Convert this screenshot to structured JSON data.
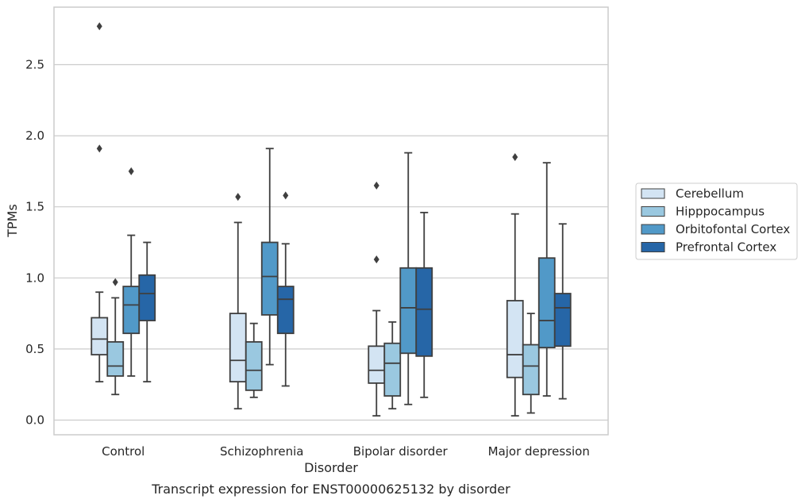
{
  "chart_data": {
    "type": "box",
    "xlabel": "Disorder",
    "ylabel": "TPMs",
    "caption": "Transcript expression for ENST00000625132 by disorder",
    "categories": [
      "Control",
      "Schizophrenia",
      "Bipolar disorder",
      "Major depression"
    ],
    "ylim": [
      -0.1,
      2.9
    ],
    "yticks": [
      0.0,
      0.5,
      1.0,
      1.5,
      2.0,
      2.5
    ],
    "ytick_labels": [
      "0.0",
      "0.5",
      "1.0",
      "1.5",
      "2.0",
      "2.5"
    ],
    "grid": "horizontal",
    "legend_position": "right",
    "series": [
      {
        "name": "Cerebellum",
        "color": "#d3e4f3",
        "boxes": [
          {
            "whislo": 0.27,
            "q1": 0.46,
            "med": 0.57,
            "q3": 0.72,
            "whishi": 0.9,
            "fliers": [
              1.91,
              2.77
            ]
          },
          {
            "whislo": 0.08,
            "q1": 0.27,
            "med": 0.42,
            "q3": 0.75,
            "whishi": 1.39,
            "fliers": [
              1.57
            ]
          },
          {
            "whislo": 0.03,
            "q1": 0.26,
            "med": 0.35,
            "q3": 0.52,
            "whishi": 0.77,
            "fliers": [
              1.13,
              1.65
            ]
          },
          {
            "whislo": 0.03,
            "q1": 0.3,
            "med": 0.46,
            "q3": 0.84,
            "whishi": 1.45,
            "fliers": [
              1.85
            ]
          }
        ]
      },
      {
        "name": "Hipppocampus",
        "color": "#9ac8e0",
        "boxes": [
          {
            "whislo": 0.18,
            "q1": 0.31,
            "med": 0.38,
            "q3": 0.55,
            "whishi": 0.86,
            "fliers": [
              0.97
            ]
          },
          {
            "whislo": 0.16,
            "q1": 0.21,
            "med": 0.35,
            "q3": 0.55,
            "whishi": 0.68,
            "fliers": []
          },
          {
            "whislo": 0.08,
            "q1": 0.17,
            "med": 0.4,
            "q3": 0.54,
            "whishi": 0.69,
            "fliers": []
          },
          {
            "whislo": 0.05,
            "q1": 0.18,
            "med": 0.38,
            "q3": 0.53,
            "whishi": 0.75,
            "fliers": []
          }
        ]
      },
      {
        "name": "Orbitofontal Cortex",
        "color": "#5199c8",
        "boxes": [
          {
            "whislo": 0.31,
            "q1": 0.61,
            "med": 0.81,
            "q3": 0.94,
            "whishi": 1.3,
            "fliers": [
              1.75
            ]
          },
          {
            "whislo": 0.39,
            "q1": 0.74,
            "med": 1.01,
            "q3": 1.25,
            "whishi": 1.91,
            "fliers": []
          },
          {
            "whislo": 0.11,
            "q1": 0.47,
            "med": 0.79,
            "q3": 1.07,
            "whishi": 1.88,
            "fliers": []
          },
          {
            "whislo": 0.17,
            "q1": 0.51,
            "med": 0.7,
            "q3": 1.14,
            "whishi": 1.81,
            "fliers": []
          }
        ]
      },
      {
        "name": "Prefrontal Cortex",
        "color": "#2666a7",
        "boxes": [
          {
            "whislo": 0.27,
            "q1": 0.7,
            "med": 0.89,
            "q3": 1.02,
            "whishi": 1.25,
            "fliers": []
          },
          {
            "whislo": 0.24,
            "q1": 0.61,
            "med": 0.85,
            "q3": 0.94,
            "whishi": 1.24,
            "fliers": [
              1.58
            ]
          },
          {
            "whislo": 0.16,
            "q1": 0.45,
            "med": 0.78,
            "q3": 1.07,
            "whishi": 1.46,
            "fliers": []
          },
          {
            "whislo": 0.15,
            "q1": 0.52,
            "med": 0.79,
            "q3": 0.89,
            "whishi": 1.38,
            "fliers": []
          }
        ]
      }
    ]
  }
}
